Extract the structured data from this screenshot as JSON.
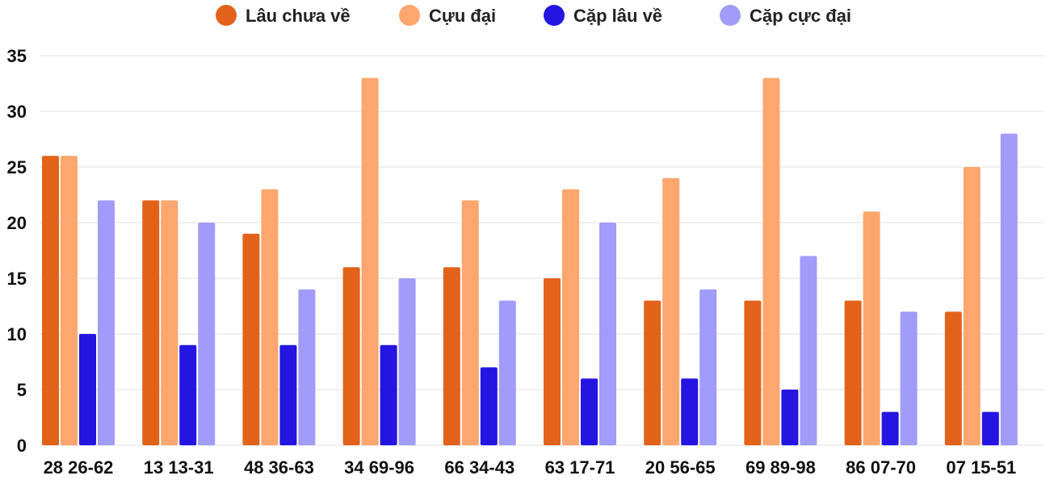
{
  "chart_data": {
    "type": "bar",
    "title": "",
    "xlabel": "",
    "ylabel": "",
    "categories": [
      "28 26-62",
      "13 13-31",
      "48 36-63",
      "34 69-96",
      "66 34-43",
      "63 17-71",
      "20 56-65",
      "69 89-98",
      "86 07-70",
      "07 15-51"
    ],
    "series": [
      {
        "name": "Lâu chưa về",
        "color": "#e3621a",
        "values": [
          26,
          22,
          19,
          16,
          16,
          15,
          13,
          13,
          13,
          12
        ]
      },
      {
        "name": "Cựu đại",
        "color": "#fda66e",
        "values": [
          26,
          22,
          23,
          33,
          22,
          23,
          24,
          33,
          21,
          25
        ]
      },
      {
        "name": "Cặp lâu về",
        "color": "#2515e0",
        "values": [
          10,
          9,
          9,
          9,
          7,
          6,
          6,
          5,
          3,
          3
        ]
      },
      {
        "name": "Cặp cực đại",
        "color": "#a19bfa",
        "values": [
          22,
          20,
          14,
          15,
          13,
          20,
          14,
          17,
          12,
          28
        ]
      }
    ],
    "ylim": [
      0,
      35
    ],
    "yticks": [
      0,
      5,
      10,
      15,
      20,
      25,
      30,
      35
    ],
    "grid": true,
    "legend_position": "top-center"
  }
}
